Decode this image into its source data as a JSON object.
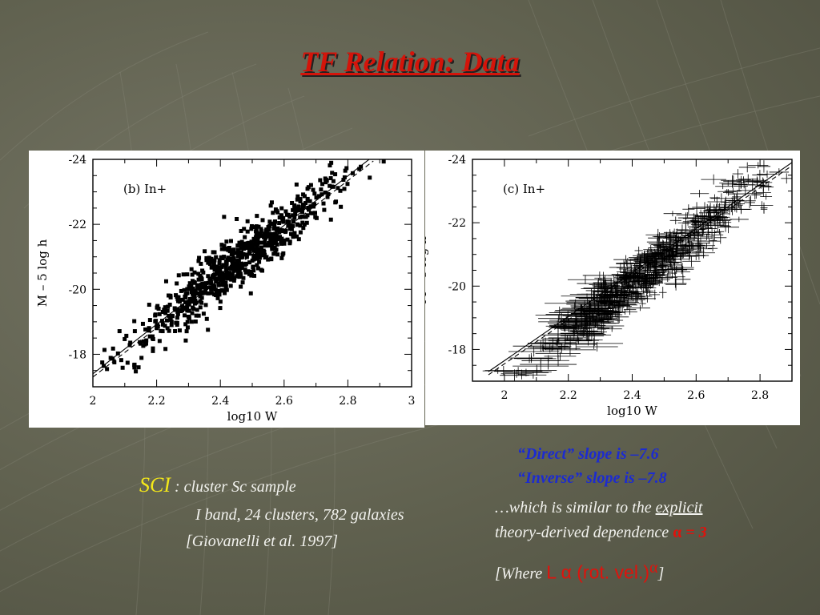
{
  "slide": {
    "title": "TF Relation: Data"
  },
  "colors": {
    "title": "#d4140a",
    "highlight_blue": "#1c2bd0",
    "highlight_yellow": "#f4e81a",
    "alpha_red": "#e0120c"
  },
  "notes": {
    "direct": "“Direct” slope is –7.6",
    "inverse": "“Inverse” slope is –7.8",
    "similar_prefix": "…which is similar to the ",
    "similar_link": "explicit",
    "theory_prefix": "theory-derived dependence ",
    "alpha_symbol": "α",
    "alpha_eq": " = 3",
    "where_open": "[Where ",
    "where_formula": "L α (rot. vel.)",
    "where_sup": "α",
    "where_close": "]"
  },
  "sample": {
    "sci": "SCI",
    "sci_rest": " : cluster Sc sample",
    "line2": "I band, 24 clusters, 782 galaxies",
    "line3": "[Giovanelli et al. 1997]"
  },
  "chart_data": [
    {
      "type": "scatter",
      "panel_label": "(b) In+",
      "xlabel": "log10 W",
      "ylabel": "M – 5 log h",
      "xlim": [
        2.0,
        3.0
      ],
      "ylim": [
        -17.0,
        -24.0
      ],
      "x_ticks": [
        "2",
        "2.2",
        "2.4",
        "2.6",
        "2.8",
        "3"
      ],
      "y_ticks": [
        "-24",
        "-22",
        "-20",
        "-18"
      ],
      "fit_lines": [
        {
          "style": "solid",
          "points": [
            [
              2.0,
              -17.4
            ],
            [
              2.88,
              -24.1
            ]
          ]
        },
        {
          "style": "dashed",
          "points": [
            [
              2.0,
              -17.3
            ],
            [
              2.88,
              -23.95
            ]
          ]
        }
      ],
      "relation": {
        "slope": -7.6,
        "intercept_at_2p5": -21.2,
        "n_points": 782
      },
      "points_sample": [
        [
          2.05,
          -17.3
        ],
        [
          2.12,
          -17.8
        ],
        [
          2.17,
          -18.2
        ],
        [
          2.2,
          -18.4
        ],
        [
          2.25,
          -18.9
        ],
        [
          2.3,
          -19.1
        ],
        [
          2.35,
          -19.7
        ],
        [
          2.4,
          -20.1
        ],
        [
          2.45,
          -20.5
        ],
        [
          2.5,
          -20.9
        ],
        [
          2.55,
          -21.3
        ],
        [
          2.6,
          -21.6
        ],
        [
          2.65,
          -22.0
        ],
        [
          2.7,
          -22.3
        ],
        [
          2.75,
          -22.7
        ],
        [
          2.8,
          -23.0
        ],
        [
          2.85,
          -23.3
        ]
      ]
    },
    {
      "type": "scatter",
      "panel_label": "(c) In+",
      "xlabel": "log10 W",
      "ylabel": "M – 5 log h",
      "xlim": [
        1.9,
        2.9
      ],
      "ylim": [
        -17.0,
        -24.0
      ],
      "x_ticks": [
        "2",
        "2.2",
        "2.4",
        "2.6",
        "2.8"
      ],
      "y_ticks": [
        "-24",
        "-22",
        "-20",
        "-18"
      ],
      "error_bars": true,
      "fit_lines": [
        {
          "style": "solid",
          "points": [
            [
              1.95,
              -17.3
            ],
            [
              2.9,
              -23.9
            ]
          ]
        },
        {
          "style": "dashed",
          "points": [
            [
              1.95,
              -17.2
            ],
            [
              2.9,
              -23.8
            ]
          ]
        }
      ],
      "relation": {
        "slope": -7.8,
        "intercept_at_2p5": -20.9,
        "n_points": 782
      },
      "points_sample": [
        [
          2.0,
          -17.4
        ],
        [
          2.08,
          -17.7
        ],
        [
          2.15,
          -18.2
        ],
        [
          2.22,
          -18.6
        ],
        [
          2.3,
          -19.2
        ],
        [
          2.38,
          -19.8
        ],
        [
          2.45,
          -20.4
        ],
        [
          2.5,
          -20.9
        ],
        [
          2.55,
          -21.3
        ],
        [
          2.6,
          -21.7
        ],
        [
          2.65,
          -22.1
        ],
        [
          2.7,
          -22.5
        ],
        [
          2.75,
          -23.0
        ],
        [
          2.78,
          -23.5
        ]
      ]
    }
  ]
}
